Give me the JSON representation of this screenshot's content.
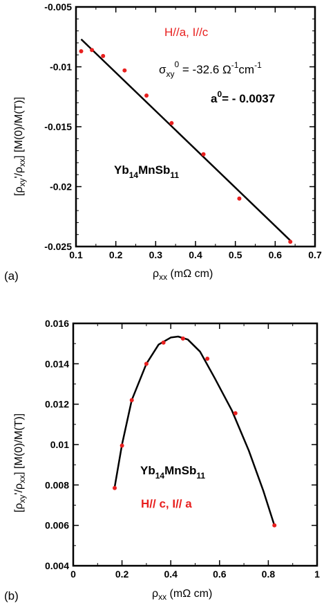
{
  "chart_data": [
    {
      "type": "scatter",
      "panel_label": "(a)",
      "xlabel": {
        "main": "ρ",
        "sub": "xx",
        "unit": " (mΩ cm)"
      },
      "ylabel": {
        "p1": "[ρ",
        "s1": "xy",
        "p2": "'/ρ",
        "s2": "xx",
        "p3": "] [M(0)/M(T)]"
      },
      "xlim": [
        0.1,
        0.7
      ],
      "ylim": [
        -0.025,
        -0.005
      ],
      "x_ticks": [
        "0.1",
        "0.2",
        "0.3",
        "0.4",
        "0.5",
        "0.6",
        "0.7"
      ],
      "y_ticks": [
        "-0.025",
        "-0.02",
        "-0.015",
        "-0.01",
        "-0.005"
      ],
      "x_tick_values": [
        0.1,
        0.2,
        0.3,
        0.4,
        0.5,
        0.6,
        0.7
      ],
      "y_tick_values": [
        -0.025,
        -0.02,
        -0.015,
        -0.01,
        -0.005
      ],
      "points": {
        "name": "data",
        "color": "#e8201f",
        "x": [
          0.113,
          0.14,
          0.168,
          0.222,
          0.277,
          0.34,
          0.42,
          0.51,
          0.638
        ],
        "y": [
          -0.0087,
          -0.0086,
          -0.0091,
          -0.0103,
          -0.0124,
          -0.0147,
          -0.0173,
          -0.021,
          -0.0246
        ]
      },
      "fit_line": {
        "x": [
          0.113,
          0.638
        ],
        "y": [
          -0.0077,
          -0.0245
        ],
        "color": "#000000"
      },
      "annotations": {
        "condition": "H//a, I//c",
        "sigma_symbol": "σ",
        "sigma_sub": "xy",
        "sigma_sup": "0",
        "sigma_eq": " = -32.6 Ω",
        "sigma_unit_sup1": "-1",
        "sigma_unit_cm": "cm",
        "sigma_unit_sup2": "-1",
        "a0_base": "a",
        "a0_sup": "0",
        "a0_eq": "= - 0.0037",
        "compound_base": "Yb",
        "compound_sub1": "14",
        "compound_mid": "MnSb",
        "compound_sub2": "11"
      }
    },
    {
      "type": "scatter",
      "panel_label": "(b)",
      "xlabel": {
        "main": "ρ",
        "sub": "xx",
        "unit": " (mΩ cm)"
      },
      "ylabel": {
        "p1": "[ρ",
        "s1": "xy",
        "p2": "'/ρ",
        "s2": "xx",
        "p3": "] [M(0)/M(T)]"
      },
      "xlim": [
        0,
        1
      ],
      "ylim": [
        0.004,
        0.016
      ],
      "x_ticks": [
        "0",
        "0.2",
        "0.4",
        "0.6",
        "0.8",
        "1"
      ],
      "y_ticks": [
        "0.004",
        "0.006",
        "0.008",
        "0.01",
        "0.012",
        "0.014",
        "0.016"
      ],
      "x_tick_values": [
        0,
        0.2,
        0.4,
        0.6,
        0.8,
        1.0
      ],
      "y_tick_values": [
        0.004,
        0.006,
        0.008,
        0.01,
        0.012,
        0.014,
        0.016
      ],
      "points": {
        "name": "data",
        "color": "#e8201f",
        "x": [
          0.17,
          0.2,
          0.24,
          0.3,
          0.37,
          0.45,
          0.55,
          0.665,
          0.825
        ],
        "y": [
          0.00785,
          0.00995,
          0.0122,
          0.014,
          0.01505,
          0.01525,
          0.01425,
          0.01155,
          0.006
        ]
      },
      "fit_curve": {
        "color": "#000000",
        "x": [
          0.17,
          0.2,
          0.24,
          0.3,
          0.35,
          0.4,
          0.43,
          0.47,
          0.52,
          0.58,
          0.65,
          0.72,
          0.78,
          0.825
        ],
        "y": [
          0.0079,
          0.01,
          0.0122,
          0.014,
          0.01495,
          0.0153,
          0.01535,
          0.0152,
          0.0146,
          0.0133,
          0.0117,
          0.0097,
          0.0077,
          0.006
        ]
      },
      "annotations": {
        "compound_base": "Yb",
        "compound_sub1": "14",
        "compound_mid": "MnSb",
        "compound_sub2": "11",
        "condition": "H// c, I// a"
      }
    }
  ]
}
